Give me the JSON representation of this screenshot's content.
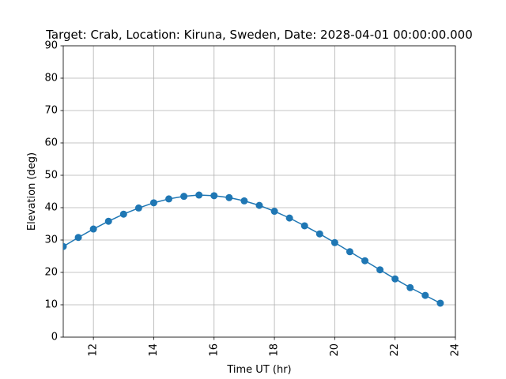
{
  "chart_data": {
    "type": "line",
    "title": "Target: Crab,  Location: Kiruna, Sweden, Date: 2028-04-01 00:00:00.000",
    "xlabel": "Time UT (hr)",
    "ylabel": "Elevation (deg)",
    "xlim": [
      11,
      24
    ],
    "ylim": [
      0,
      90
    ],
    "x_ticks": [
      12,
      14,
      16,
      18,
      20,
      22,
      24
    ],
    "y_ticks": [
      0,
      10,
      20,
      30,
      40,
      50,
      60,
      70,
      80,
      90
    ],
    "x_tick_rotation": "vertical",
    "grid": true,
    "series": [
      {
        "color": "#1f77b4",
        "marker": "circle",
        "x": [
          11.0,
          11.5,
          12.0,
          12.5,
          13.0,
          13.5,
          14.0,
          14.5,
          15.0,
          15.5,
          16.0,
          16.5,
          17.0,
          17.5,
          18.0,
          18.5,
          19.0,
          19.5,
          20.0,
          20.5,
          21.0,
          21.5,
          22.0,
          22.5,
          23.0,
          23.5
        ],
        "y": [
          28.0,
          30.8,
          33.4,
          35.8,
          38.0,
          39.9,
          41.5,
          42.7,
          43.5,
          43.9,
          43.7,
          43.1,
          42.1,
          40.7,
          38.9,
          36.8,
          34.4,
          31.9,
          29.2,
          26.4,
          23.6,
          20.8,
          18.0,
          15.3,
          12.9,
          10.5
        ]
      }
    ]
  }
}
